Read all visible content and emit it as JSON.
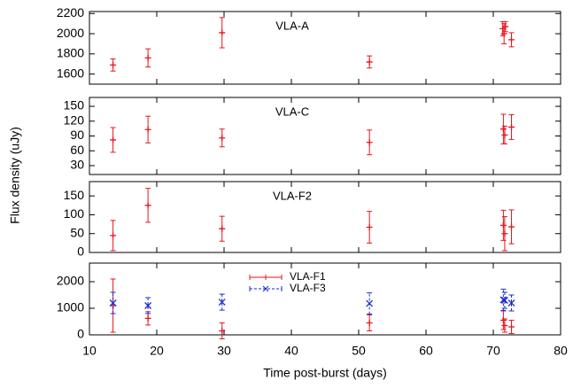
{
  "chart_data": [
    {
      "type": "errorbar",
      "title": "VLA-A",
      "xlim": [
        10,
        80
      ],
      "xticks": [
        10,
        20,
        30,
        40,
        50,
        60,
        70,
        80
      ],
      "ylim": [
        1500,
        2220
      ],
      "yticks": [
        1600,
        1800,
        2000,
        2200
      ],
      "series": [
        {
          "color": "#e8141c",
          "marker": "plus",
          "x": [
            13.5,
            18.7,
            29.7,
            51.6,
            71.4,
            71.6,
            71.8,
            72.7
          ],
          "values": [
            1690,
            1760,
            2010,
            1720,
            2050,
            2000,
            2070,
            1940
          ],
          "errors": [
            60,
            90,
            150,
            60,
            70,
            100,
            50,
            70
          ]
        }
      ]
    },
    {
      "type": "errorbar",
      "title": "VLA-C",
      "xlim": [
        10,
        80
      ],
      "xticks": [
        10,
        20,
        30,
        40,
        50,
        60,
        70,
        80
      ],
      "ylim": [
        12,
        168
      ],
      "yticks": [
        30,
        60,
        90,
        120,
        150
      ],
      "series": [
        {
          "color": "#e8141c",
          "marker": "plus",
          "x": [
            13.5,
            18.7,
            29.7,
            51.6,
            71.5,
            71.7,
            72.7
          ],
          "values": [
            82,
            103,
            86,
            77,
            104,
            92,
            108
          ],
          "errors": [
            25,
            27,
            18,
            25,
            30,
            18,
            25
          ]
        }
      ]
    },
    {
      "type": "errorbar",
      "title": "VLA-F2",
      "xlim": [
        10,
        80
      ],
      "xticks": [
        10,
        20,
        30,
        40,
        50,
        60,
        70,
        80
      ],
      "ylim": [
        0,
        188
      ],
      "yticks": [
        0,
        50,
        100,
        150
      ],
      "series": [
        {
          "color": "#e8141c",
          "marker": "plus",
          "x": [
            13.5,
            18.7,
            29.7,
            51.6,
            71.5,
            71.7,
            72.7
          ],
          "values": [
            45,
            125,
            63,
            67,
            72,
            50,
            68
          ],
          "errors": [
            40,
            45,
            33,
            42,
            40,
            45,
            45
          ]
        }
      ]
    },
    {
      "type": "errorbar",
      "xlim": [
        10,
        80
      ],
      "xticks": [
        10,
        20,
        30,
        40,
        50,
        60,
        70,
        80
      ],
      "ylim": [
        0,
        2700
      ],
      "yticks": [
        0,
        1000,
        2000
      ],
      "x_label": "Time post-burst (days)",
      "y_label": "Flux density (uJy)",
      "series": [
        {
          "name": "VLA-F1",
          "color": "#e8141c",
          "marker": "plus",
          "x": [
            13.5,
            18.7,
            29.7,
            51.6,
            71.5,
            71.7,
            72.7
          ],
          "values": [
            1100,
            620,
            150,
            450,
            550,
            350,
            300
          ],
          "errors": [
            1000,
            250,
            300,
            300,
            350,
            250,
            250
          ]
        },
        {
          "name": "VLA-F3",
          "color": "#1a2bd0",
          "marker": "cross",
          "x": [
            13.5,
            18.7,
            29.7,
            51.6,
            71.5,
            71.7,
            72.7
          ],
          "values": [
            1200,
            1100,
            1230,
            1180,
            1320,
            1300,
            1200
          ],
          "errors": [
            400,
            300,
            300,
            400,
            400,
            300,
            300
          ]
        }
      ]
    }
  ]
}
